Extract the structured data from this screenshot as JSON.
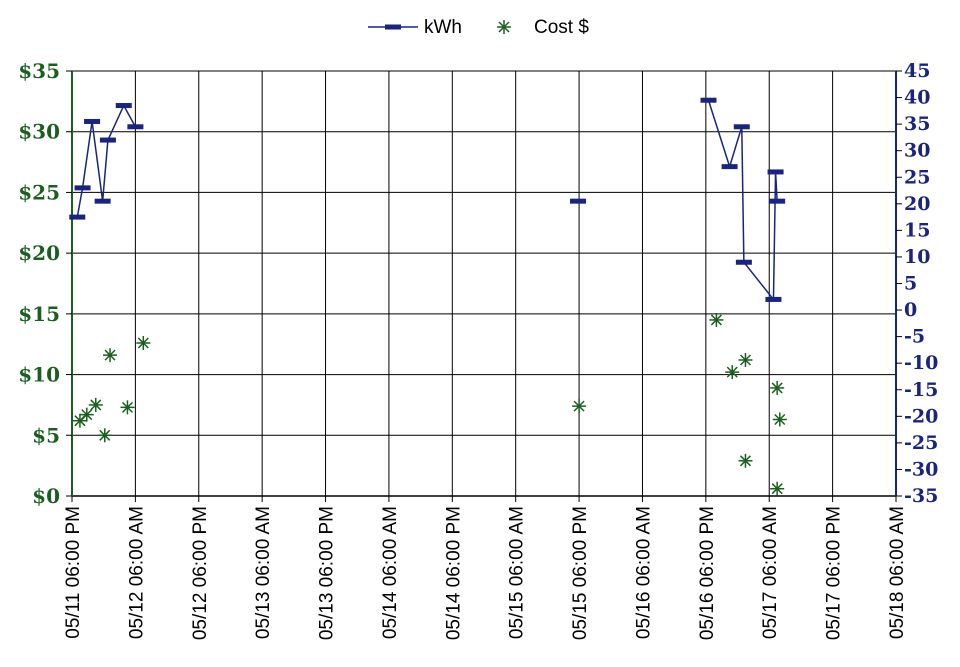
{
  "chart_data": {
    "type": "line",
    "legend": {
      "placement": "top-center",
      "items": [
        {
          "name": "kWh",
          "marker": "dash-line"
        },
        {
          "name": "Cost $",
          "marker": "asterisk"
        }
      ]
    },
    "grid": true,
    "x_ticks": [
      "05/11 06:00 PM",
      "05/12 06:00 AM",
      "05/12 06:00 PM",
      "05/13 06:00 AM",
      "05/13 06:00 PM",
      "05/14 06:00 AM",
      "05/14 06:00 PM",
      "05/15 06:00 AM",
      "05/15 06:00 PM",
      "05/16 06:00 AM",
      "05/16 06:00 PM",
      "05/17 06:00 AM",
      "05/17 06:00 PM",
      "05/18 06:00 AM"
    ],
    "xlim_hours": [
      0,
      156
    ],
    "y_left": {
      "ticks": [
        "$0",
        "$5",
        "$10",
        "$15",
        "$20",
        "$25",
        "$30",
        "$35"
      ],
      "ylim": [
        0,
        35
      ],
      "color": "#1b5e20"
    },
    "y_right": {
      "ticks": [
        "-35",
        "-30",
        "-25",
        "-20",
        "-15",
        "-10",
        "-5",
        "0",
        "5",
        "10",
        "15",
        "20",
        "25",
        "30",
        "35",
        "40",
        "45"
      ],
      "ylim": [
        -35,
        45
      ],
      "color": "#1a237e"
    },
    "series": [
      {
        "name": "kWh",
        "axis": "right",
        "color": "#1a237e",
        "segments": [
          [
            [
              1,
              17.5
            ],
            [
              2,
              23
            ],
            [
              3.8,
              35.5
            ],
            [
              5.8,
              20.5
            ],
            [
              6.8,
              32
            ],
            [
              9.8,
              38.5
            ],
            [
              12,
              34.5
            ]
          ],
          [
            [
              95.8,
              20.5
            ]
          ],
          [
            [
              120.5,
              39.5
            ],
            [
              124.5,
              27
            ],
            [
              126.8,
              34.5
            ],
            [
              127.2,
              9
            ],
            [
              132.8,
              2
            ],
            [
              133.2,
              26
            ],
            [
              133.5,
              20.5
            ]
          ]
        ]
      },
      {
        "name": "Cost $",
        "axis": "left",
        "color": "#1b5e20",
        "points": [
          [
            1.5,
            6.2
          ],
          [
            2.8,
            6.7
          ],
          [
            4.5,
            7.5
          ],
          [
            6.2,
            5.0
          ],
          [
            7.2,
            11.6
          ],
          [
            10.5,
            7.3
          ],
          [
            13.5,
            12.6
          ],
          [
            96,
            7.4
          ],
          [
            122,
            14.5
          ],
          [
            125,
            10.2
          ],
          [
            127.5,
            11.2
          ],
          [
            127.5,
            2.9
          ],
          [
            133.5,
            8.9
          ],
          [
            134,
            6.3
          ],
          [
            133.5,
            0.6
          ]
        ]
      }
    ]
  }
}
